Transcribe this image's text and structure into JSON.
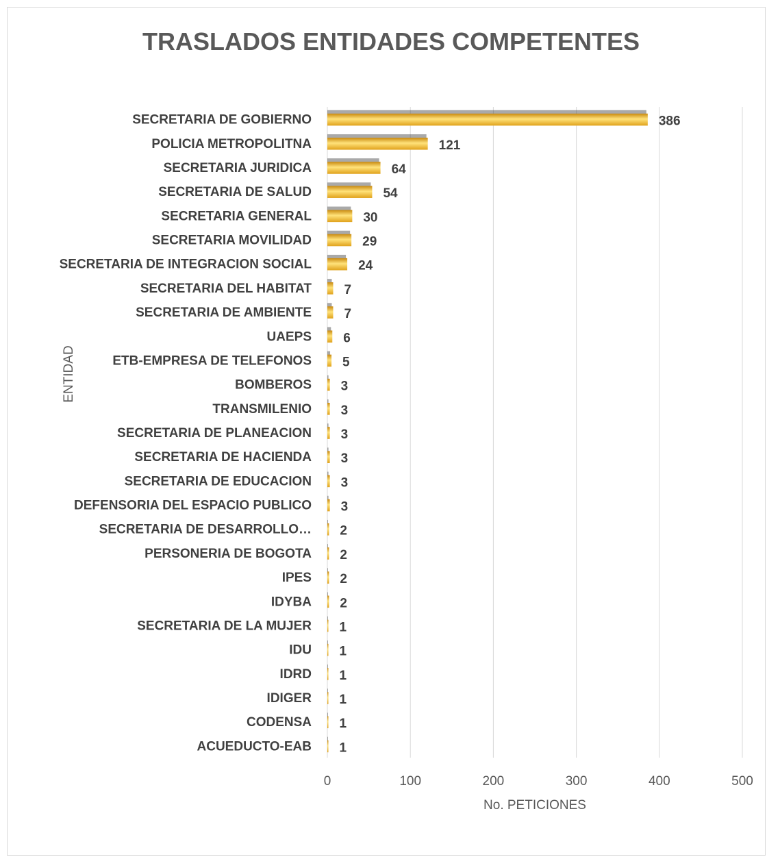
{
  "chart_data": {
    "type": "bar",
    "orientation": "horizontal",
    "title": "TRASLADOS ENTIDADES COMPETENTES",
    "xlabel": "No. PETICIONES",
    "ylabel": "ENTIDAD",
    "xlim": [
      0,
      500
    ],
    "xticks": [
      0,
      100,
      200,
      300,
      400,
      500
    ],
    "grid": "vertical",
    "legend": "none",
    "colors": {
      "bar_light": "#ffe27a",
      "bar_mid": "#f4b637",
      "bar_dark": "#c98a10",
      "shadow": "#404040"
    },
    "categories": [
      "SECRETARIA DE GOBIERNO",
      "POLICIA METROPOLITNA",
      "SECRETARIA JURIDICA",
      "SECRETARIA DE SALUD",
      "SECRETARIA GENERAL",
      "SECRETARIA MOVILIDAD",
      "SECRETARIA DE INTEGRACION SOCIAL",
      "SECRETARIA DEL  HABITAT",
      "SECRETARIA DE AMBIENTE",
      "UAEPS",
      "ETB-EMPRESA DE TELEFONOS",
      "BOMBEROS",
      "TRANSMILENIO",
      "SECRETARIA DE PLANEACION",
      "SECRETARIA DE HACIENDA",
      "SECRETARIA DE EDUCACION",
      "DEFENSORIA DEL ESPACIO PUBLICO",
      "SECRETARIA DE DESARROLLO…",
      "PERSONERIA DE BOGOTA",
      "IPES",
      "IDYBA",
      "SECRETARIA DE LA MUJER",
      "IDU",
      "IDRD",
      "IDIGER",
      "CODENSA",
      "ACUEDUCTO-EAB"
    ],
    "values": [
      386,
      121,
      64,
      54,
      30,
      29,
      24,
      7,
      7,
      6,
      5,
      3,
      3,
      3,
      3,
      3,
      3,
      2,
      2,
      2,
      2,
      1,
      1,
      1,
      1,
      1,
      1
    ]
  }
}
